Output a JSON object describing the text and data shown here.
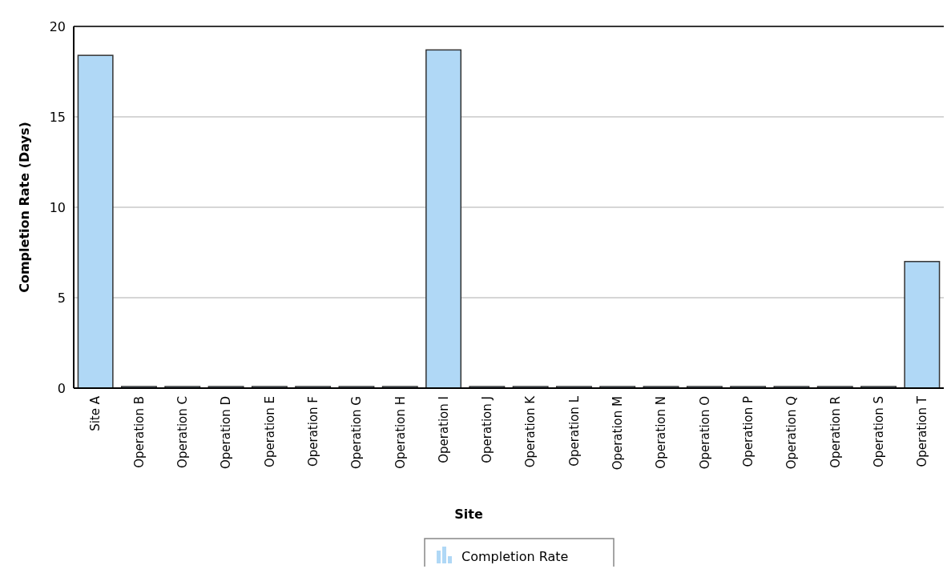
{
  "chart_data": {
    "type": "bar",
    "xlabel": "Site",
    "ylabel": "Completion Rate (Days)",
    "categories": [
      "Site A",
      "Operation B",
      "Operation C",
      "Operation D",
      "Operation E",
      "Operation F",
      "Operation G",
      "Operation H",
      "Operation I",
      "Operation J",
      "Operation K",
      "Operation L",
      "Operation M",
      "Operation N",
      "Operation O",
      "Operation P",
      "Operation Q",
      "Operation R",
      "Operation S",
      "Operation T"
    ],
    "series": [
      {
        "name": "Completion Rate",
        "color": "#b0d8f6",
        "values": [
          18.4,
          0,
          0,
          0,
          0,
          0,
          0,
          0,
          18.7,
          0,
          0,
          0,
          0,
          0,
          0,
          0,
          0,
          0,
          0,
          7.0
        ]
      }
    ],
    "ylim": [
      0,
      20
    ],
    "yticks": [
      0,
      5,
      10,
      15,
      20
    ],
    "grid": "y",
    "legend": "bottom"
  }
}
